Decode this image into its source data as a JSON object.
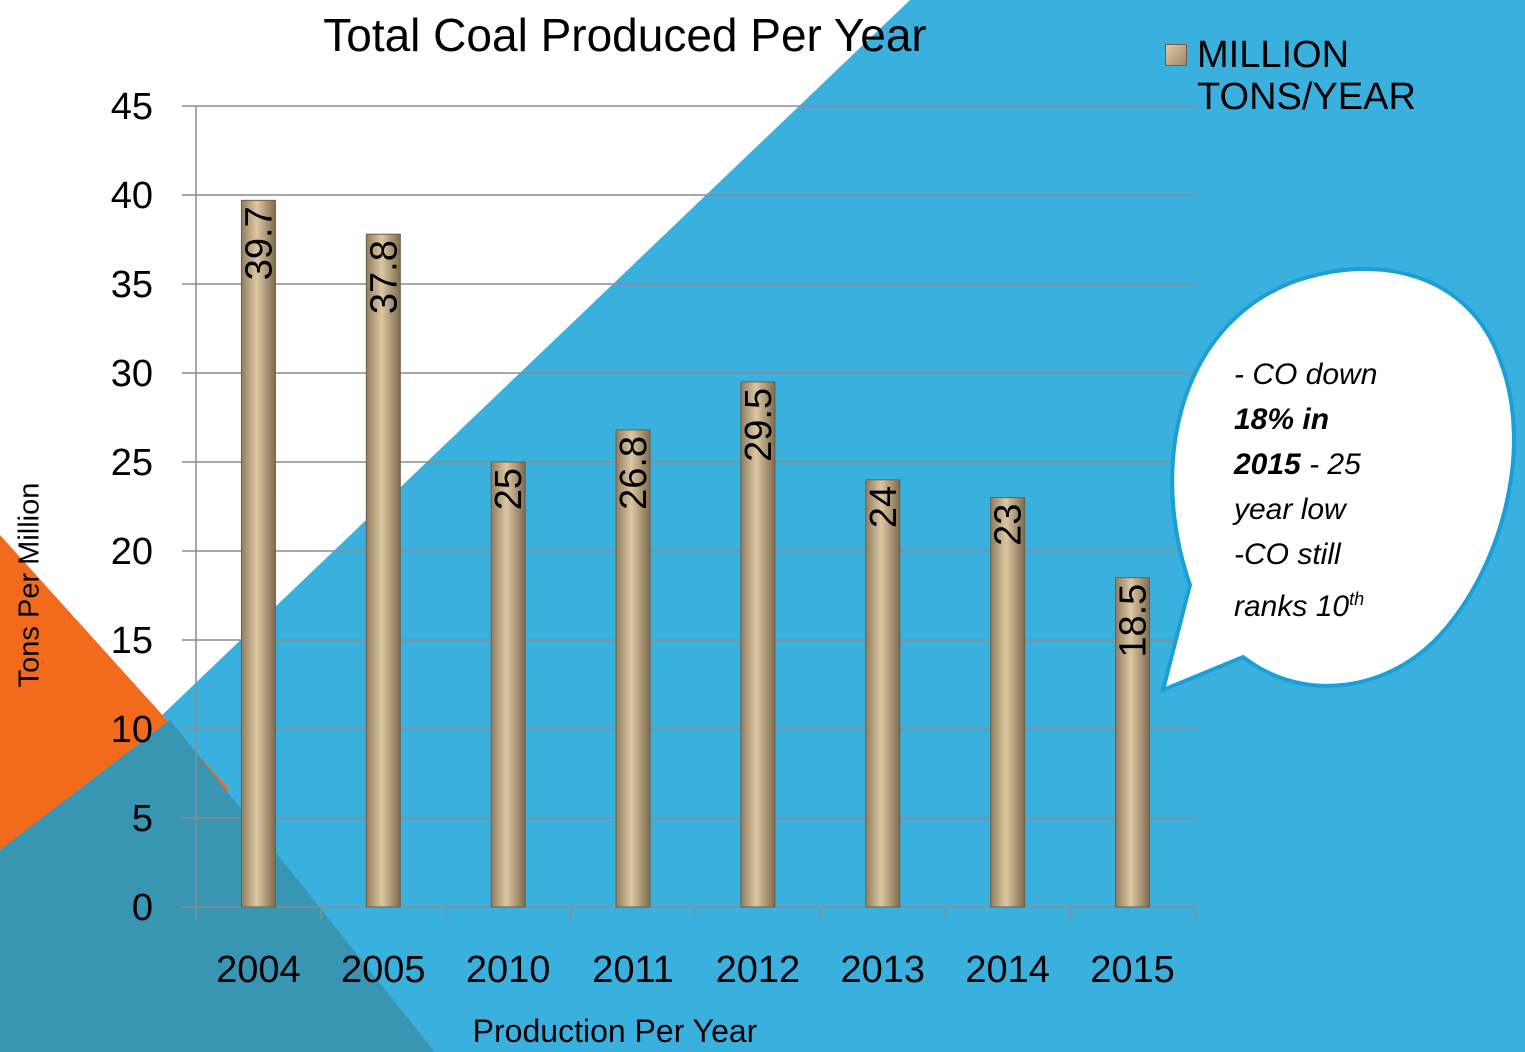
{
  "chart_data": {
    "type": "bar",
    "title": "Total Coal Produced Per Year",
    "xlabel": "Production Per Year",
    "ylabel": "Tons Per Million",
    "categories": [
      "2004",
      "2005",
      "2010",
      "2011",
      "2012",
      "2013",
      "2014",
      "2015"
    ],
    "series": [
      {
        "name": "MILLION TONS/YEAR",
        "values": [
          39.7,
          37.8,
          25,
          26.8,
          29.5,
          24,
          23,
          18.5
        ]
      }
    ],
    "data_labels": [
      "39.7",
      "37.8",
      "25",
      "26.8",
      "29.5",
      "24",
      "23",
      "18.5"
    ],
    "ylim": [
      0,
      45
    ],
    "yticks": [
      0,
      5,
      10,
      15,
      20,
      25,
      30,
      35,
      40,
      45
    ],
    "grid": true,
    "legend_position": "top-right"
  },
  "callout": {
    "line1": "- CO down",
    "line2": "18%  in",
    "line3_bold": "2015",
    "line3_rest": " - 25",
    "line4": "year low",
    "line5": "-CO still",
    "line6": "ranks 10",
    "line6_sup": "th"
  },
  "colors": {
    "background_blue": "#3ab0df",
    "accent_orange": "#f26b1d",
    "dark_teal": "#3896b3",
    "bar_fill": "#c8b08a",
    "gridline": "#8c8c8c"
  }
}
